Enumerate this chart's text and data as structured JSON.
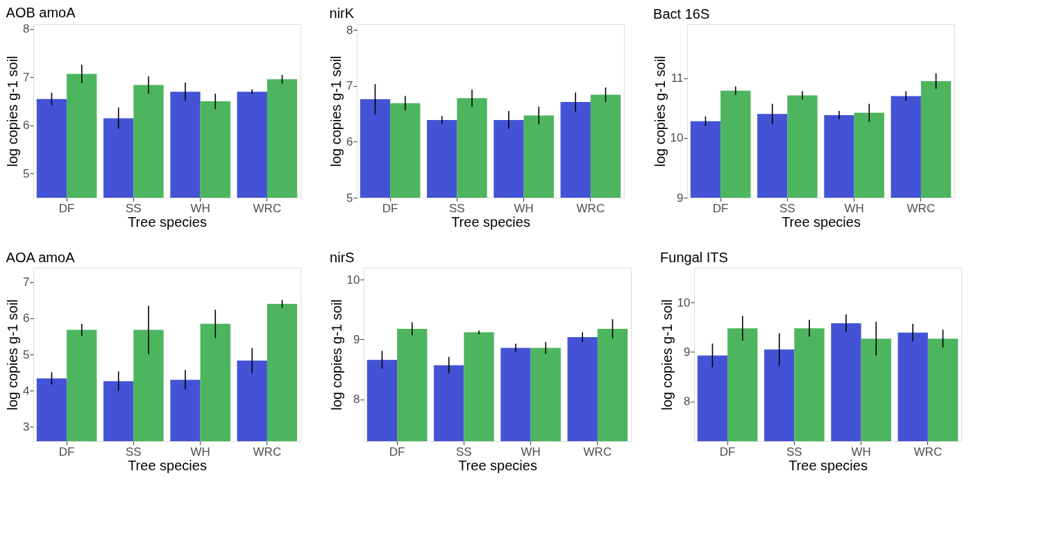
{
  "chart_data": [
    {
      "type": "bar",
      "title": "AOB amoA",
      "xlabel": "Tree species",
      "ylabel": "log copies g-1 soil",
      "categories": [
        "DF",
        "SS",
        "WH",
        "WRC"
      ],
      "ylim": [
        4.5,
        8.1
      ],
      "yticks": [
        5,
        6,
        7,
        8
      ],
      "grid": false,
      "legend": false,
      "series": [
        {
          "color": "#4453d6",
          "values": [
            6.55,
            6.15,
            6.7,
            6.7
          ],
          "errors": [
            0.13,
            0.22,
            0.19,
            0.05
          ]
        },
        {
          "color": "#4db55e",
          "values": [
            7.07,
            6.84,
            6.5,
            6.96
          ],
          "errors": [
            0.19,
            0.18,
            0.16,
            0.09
          ]
        }
      ]
    },
    {
      "type": "bar",
      "title": "nirK",
      "xlabel": "Tree species",
      "ylabel": "log copies g-1 soil",
      "categories": [
        "DF",
        "SS",
        "WH",
        "WRC"
      ],
      "ylim": [
        5,
        8.1
      ],
      "yticks": [
        5,
        6,
        7,
        8
      ],
      "grid": false,
      "legend": false,
      "series": [
        {
          "color": "#4453d6",
          "values": [
            6.76,
            6.39,
            6.39,
            6.71
          ],
          "errors": [
            0.27,
            0.07,
            0.16,
            0.17
          ]
        },
        {
          "color": "#4db55e",
          "values": [
            6.69,
            6.78,
            6.47,
            6.84
          ],
          "errors": [
            0.13,
            0.15,
            0.16,
            0.13
          ]
        }
      ]
    },
    {
      "type": "bar",
      "title": "Bact 16S",
      "xlabel": "Tree species",
      "ylabel": "log copies g-1 soil",
      "categories": [
        "DF",
        "SS",
        "WH",
        "WRC"
      ],
      "ylim": [
        9,
        11.9
      ],
      "yticks": [
        9,
        10,
        11
      ],
      "grid": false,
      "legend": false,
      "series": [
        {
          "color": "#4453d6",
          "values": [
            10.28,
            10.4,
            10.38,
            10.7
          ],
          "errors": [
            0.08,
            0.17,
            0.07,
            0.08
          ]
        },
        {
          "color": "#4db55e",
          "values": [
            10.79,
            10.71,
            10.42,
            10.95
          ],
          "errors": [
            0.07,
            0.07,
            0.15,
            0.13
          ]
        }
      ]
    },
    {
      "type": "bar",
      "title": "AOA amoA",
      "xlabel": "Tree species",
      "ylabel": "log copies g-1 soil",
      "categories": [
        "DF",
        "SS",
        "WH",
        "WRC"
      ],
      "ylim": [
        2.6,
        7.4
      ],
      "yticks": [
        3,
        4,
        5,
        6,
        7
      ],
      "grid": false,
      "legend": false,
      "series": [
        {
          "color": "#4453d6",
          "values": [
            4.34,
            4.26,
            4.3,
            4.83
          ],
          "errors": [
            0.17,
            0.27,
            0.27,
            0.35
          ]
        },
        {
          "color": "#4db55e",
          "values": [
            5.68,
            5.68,
            5.85,
            6.4
          ],
          "errors": [
            0.17,
            0.67,
            0.39,
            0.11
          ]
        }
      ]
    },
    {
      "type": "bar",
      "title": "nirS",
      "xlabel": "Tree species",
      "ylabel": "log copies g-1 soil",
      "categories": [
        "DF",
        "SS",
        "WH",
        "WRC"
      ],
      "ylim": [
        7.3,
        10.2
      ],
      "yticks": [
        8,
        9,
        10
      ],
      "grid": false,
      "legend": false,
      "series": [
        {
          "color": "#4453d6",
          "values": [
            8.66,
            8.57,
            8.86,
            9.04
          ],
          "errors": [
            0.15,
            0.14,
            0.07,
            0.08
          ]
        },
        {
          "color": "#4db55e",
          "values": [
            9.18,
            9.12,
            8.86,
            9.18
          ],
          "errors": [
            0.11,
            0.03,
            0.1,
            0.16
          ]
        }
      ]
    },
    {
      "type": "bar",
      "title": "Fungal ITS",
      "xlabel": "Tree species",
      "ylabel": "log copies g-1 soil",
      "categories": [
        "DF",
        "SS",
        "WH",
        "WRC"
      ],
      "ylim": [
        7.2,
        10.7
      ],
      "yticks": [
        8,
        9,
        10
      ],
      "grid": false,
      "legend": false,
      "series": [
        {
          "color": "#4453d6",
          "values": [
            8.93,
            9.05,
            9.58,
            9.39
          ],
          "errors": [
            0.24,
            0.33,
            0.18,
            0.18
          ]
        },
        {
          "color": "#4db55e",
          "values": [
            9.48,
            9.48,
            9.27,
            9.27
          ],
          "errors": [
            0.25,
            0.17,
            0.34,
            0.18
          ]
        }
      ]
    }
  ]
}
